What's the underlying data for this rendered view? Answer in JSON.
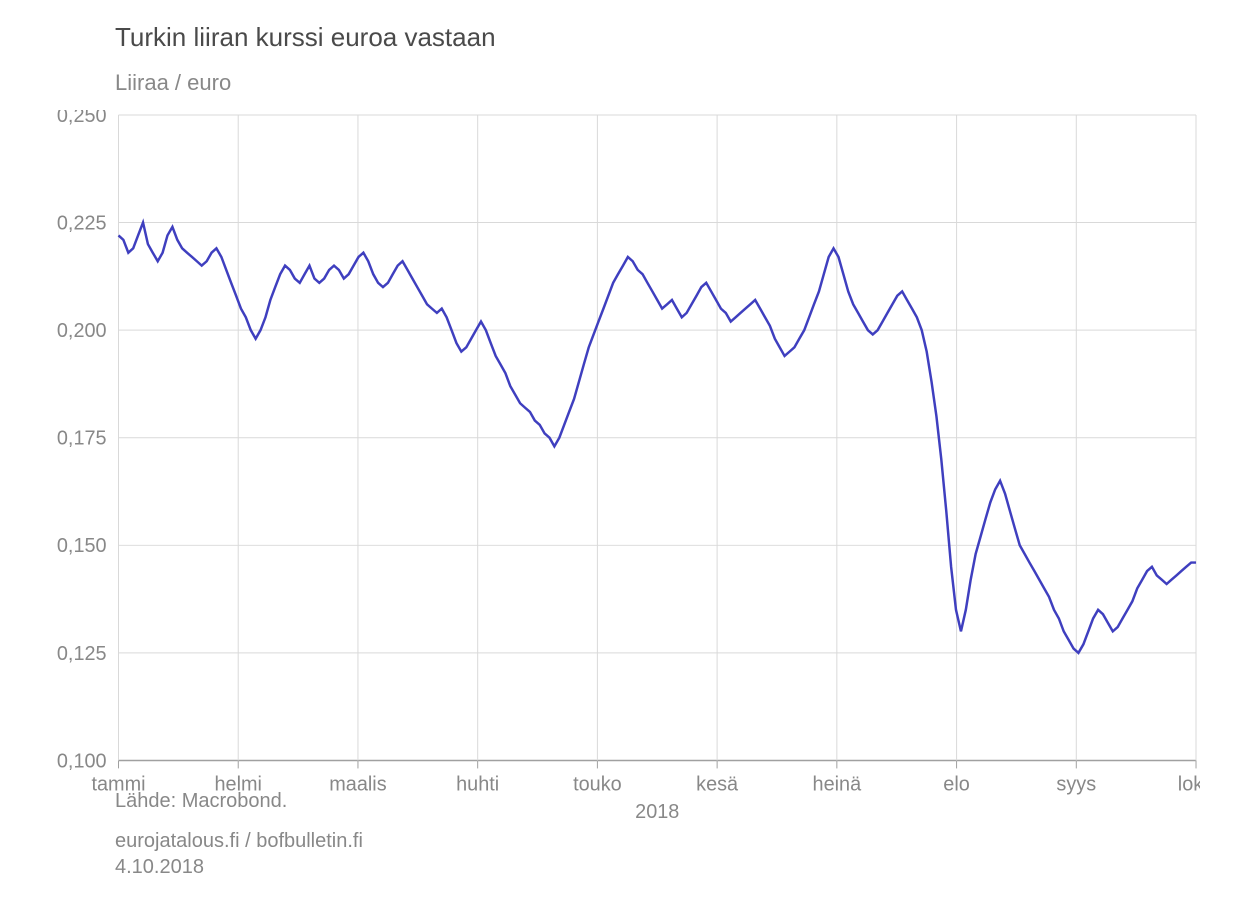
{
  "title": "Turkin liiran kurssi euroa vastaan",
  "ylabel": "Liiraa / euro",
  "source": "Lähde: Macrobond.",
  "footer_site": "eurojatalous.fi / bofbulletin.fi",
  "footer_date": "4.10.2018",
  "chart": {
    "type": "line",
    "ylim": [
      0.1,
      0.25
    ],
    "yticks": [
      0.1,
      0.125,
      0.15,
      0.175,
      0.2,
      0.225,
      0.25
    ],
    "ytick_labels": [
      "0,100",
      "0,125",
      "0,150",
      "0,175",
      "0,200",
      "0,225",
      "0,250"
    ],
    "x_start": "2018-01-01",
    "x_end": "2018-10-01",
    "xticks_month_index": [
      0,
      1,
      2,
      3,
      4,
      5,
      6,
      7,
      8,
      9
    ],
    "xtick_labels": [
      "tammi",
      "helmi",
      "maalis",
      "huhti",
      "touko",
      "kesä",
      "heinä",
      "elo",
      "syys",
      "loka"
    ],
    "secondary_xlabel": "2018",
    "grid_color": "#d9d9d9",
    "baseline_color": "#a0a0a0",
    "background_color": "#ffffff",
    "tick_text_color": "#888888",
    "line_color": "#3f3fbf",
    "line_width": 2.5,
    "title_fontsize": 26,
    "axis_fontsize": 20,
    "values_day": [
      0.222,
      0.221,
      0.218,
      0.219,
      0.222,
      0.225,
      0.22,
      0.218,
      0.216,
      0.218,
      0.222,
      0.224,
      0.221,
      0.219,
      0.218,
      0.217,
      0.216,
      0.215,
      0.216,
      0.218,
      0.219,
      0.217,
      0.214,
      0.211,
      0.208,
      0.205,
      0.203,
      0.2,
      0.198,
      0.2,
      0.203,
      0.207,
      0.21,
      0.213,
      0.215,
      0.214,
      0.212,
      0.211,
      0.213,
      0.215,
      0.212,
      0.211,
      0.212,
      0.214,
      0.215,
      0.214,
      0.212,
      0.213,
      0.215,
      0.217,
      0.218,
      0.216,
      0.213,
      0.211,
      0.21,
      0.211,
      0.213,
      0.215,
      0.216,
      0.214,
      0.212,
      0.21,
      0.208,
      0.206,
      0.205,
      0.204,
      0.205,
      0.203,
      0.2,
      0.197,
      0.195,
      0.196,
      0.198,
      0.2,
      0.202,
      0.2,
      0.197,
      0.194,
      0.192,
      0.19,
      0.187,
      0.185,
      0.183,
      0.182,
      0.181,
      0.179,
      0.178,
      0.176,
      0.175,
      0.173,
      0.175,
      0.178,
      0.181,
      0.184,
      0.188,
      0.192,
      0.196,
      0.199,
      0.202,
      0.205,
      0.208,
      0.211,
      0.213,
      0.215,
      0.217,
      0.216,
      0.214,
      0.213,
      0.211,
      0.209,
      0.207,
      0.205,
      0.206,
      0.207,
      0.205,
      0.203,
      0.204,
      0.206,
      0.208,
      0.21,
      0.211,
      0.209,
      0.207,
      0.205,
      0.204,
      0.202,
      0.203,
      0.204,
      0.205,
      0.206,
      0.207,
      0.205,
      0.203,
      0.201,
      0.198,
      0.196,
      0.194,
      0.195,
      0.196,
      0.198,
      0.2,
      0.203,
      0.206,
      0.209,
      0.213,
      0.217,
      0.219,
      0.217,
      0.213,
      0.209,
      0.206,
      0.204,
      0.202,
      0.2,
      0.199,
      0.2,
      0.202,
      0.204,
      0.206,
      0.208,
      0.209,
      0.207,
      0.205,
      0.203,
      0.2,
      0.195,
      0.188,
      0.18,
      0.17,
      0.158,
      0.145,
      0.135,
      0.13,
      0.135,
      0.142,
      0.148,
      0.152,
      0.156,
      0.16,
      0.163,
      0.165,
      0.162,
      0.158,
      0.154,
      0.15,
      0.148,
      0.146,
      0.144,
      0.142,
      0.14,
      0.138,
      0.135,
      0.133,
      0.13,
      0.128,
      0.126,
      0.125,
      0.127,
      0.13,
      0.133,
      0.135,
      0.134,
      0.132,
      0.13,
      0.131,
      0.133,
      0.135,
      0.137,
      0.14,
      0.142,
      0.144,
      0.145,
      0.143,
      0.142,
      0.141,
      0.142,
      0.143,
      0.144,
      0.145,
      0.146,
      0.146
    ]
  }
}
